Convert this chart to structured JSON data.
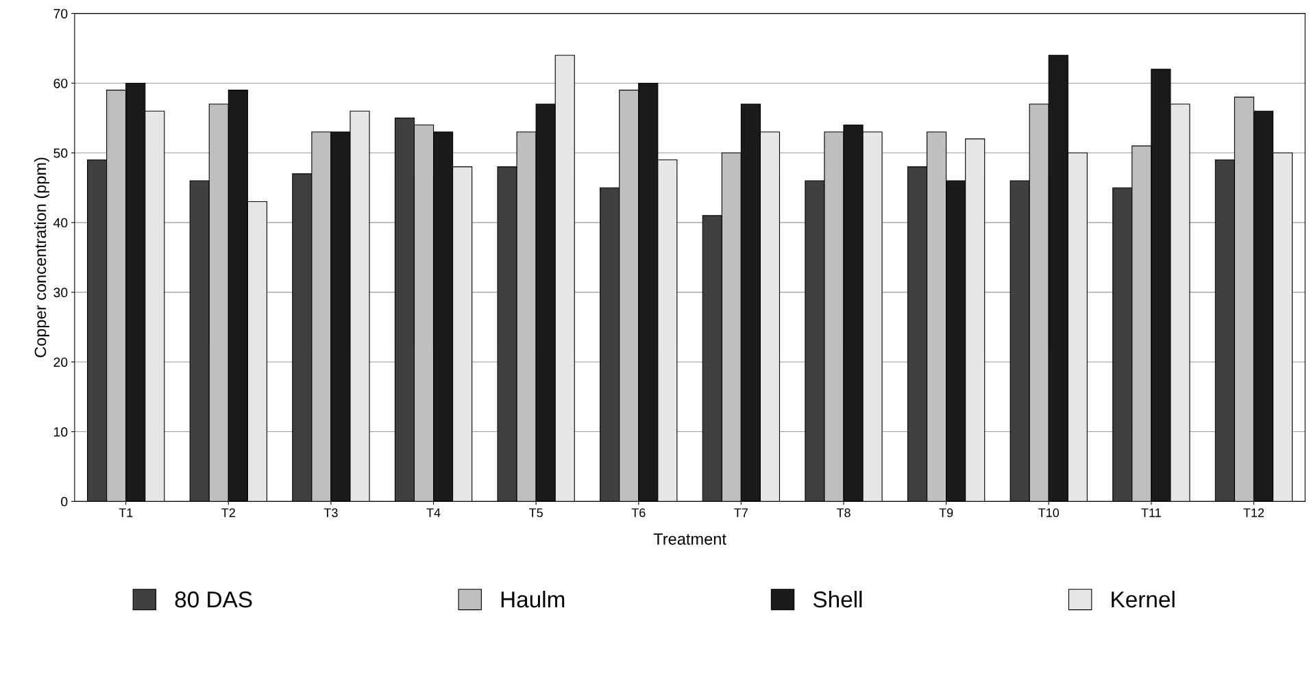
{
  "chart_data": {
    "type": "bar",
    "xlabel": "Treatment",
    "ylabel": "Copper concentration (ppm)",
    "categories": [
      "T1",
      "T2",
      "T3",
      "T4",
      "T5",
      "T6",
      "T7",
      "T8",
      "T9",
      "T10",
      "T11",
      "T12"
    ],
    "series": [
      {
        "name": "80 DAS",
        "color": "#404040",
        "values": [
          49,
          46,
          47,
          55,
          48,
          45,
          41,
          46,
          48,
          46,
          45,
          49
        ]
      },
      {
        "name": "Haulm",
        "color": "#bfbfbf",
        "values": [
          59,
          57,
          53,
          54,
          53,
          59,
          50,
          53,
          53,
          57,
          51,
          58
        ]
      },
      {
        "name": "Shell",
        "color": "#1a1a1a",
        "values": [
          60,
          59,
          53,
          53,
          57,
          60,
          57,
          54,
          46,
          64,
          62,
          56
        ]
      },
      {
        "name": "Kernel",
        "color": "#e6e6e6",
        "values": [
          56,
          43,
          56,
          48,
          64,
          49,
          53,
          53,
          52,
          50,
          57,
          50
        ]
      }
    ],
    "ylim": [
      0,
      70
    ],
    "yticks": [
      0,
      10,
      20,
      30,
      40,
      50,
      60,
      70
    ],
    "grid": "y",
    "legend": "bottom"
  }
}
